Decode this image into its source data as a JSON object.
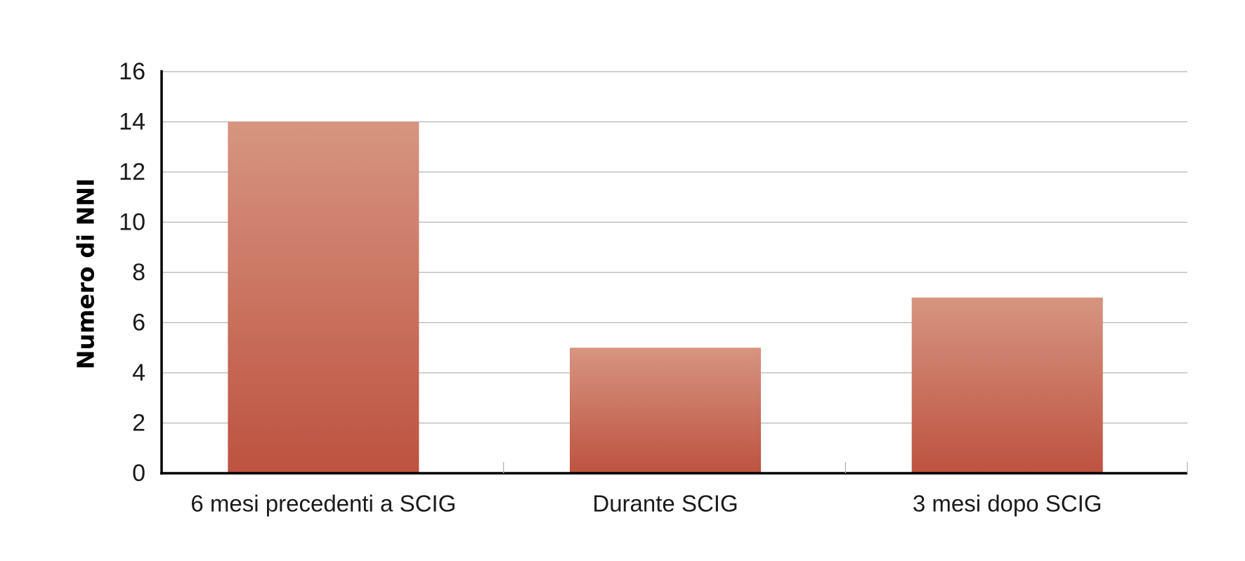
{
  "chart_data": {
    "type": "bar",
    "title": "",
    "xlabel": "",
    "ylabel": "Numero di NNI",
    "categories": [
      "6 mesi precedenti a SCIG",
      "Durante SCIG",
      "3 mesi dopo SCIG"
    ],
    "values": [
      14,
      5,
      7
    ],
    "ylim": [
      0,
      16
    ],
    "yticks": [
      0,
      2,
      4,
      6,
      8,
      10,
      12,
      14,
      16
    ],
    "grid": true,
    "legend": "none",
    "colors": {
      "bar_top": "#d69580",
      "bar_bottom": "#bd5240",
      "grid": "#b3b3b3",
      "axis": "#000000"
    }
  }
}
